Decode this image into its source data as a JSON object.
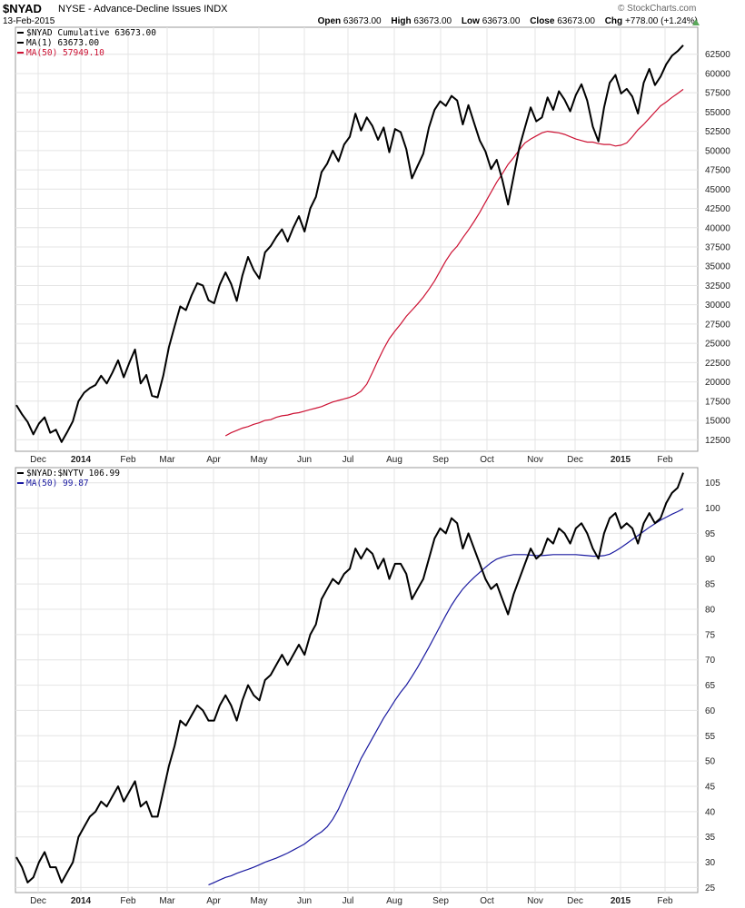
{
  "header": {
    "symbol": "$NYAD",
    "description": "NYSE - Advance-Decline Issues",
    "exchange": "INDX",
    "date": "13-Feb-2015",
    "copyright": "© StockCharts.com",
    "open_label": "Open",
    "open": "63673.00",
    "high_label": "High",
    "high": "63673.00",
    "low_label": "Low",
    "low": "63673.00",
    "close_label": "Close",
    "close": "63673.00",
    "chg_label": "Chg",
    "chg": "+778.00 (+1.24%)",
    "chg_direction": "up"
  },
  "colors": {
    "price": "#000000",
    "ma_top": "#cc1133",
    "ma_bottom": "#1a1aa0",
    "grid": "#e4e4e4",
    "up_arrow": "#5aa85a"
  },
  "chart_data": [
    {
      "type": "line",
      "panel": "top",
      "legend": [
        {
          "label": "$NYAD Cumulative 63673.00",
          "color": "#000000"
        },
        {
          "label": "MA(1) 63673.00",
          "color": "#000000"
        },
        {
          "label": "MA(50) 57949.10",
          "color": "#cc1133"
        }
      ],
      "yticks": [
        12500,
        15000,
        17500,
        20000,
        22500,
        25000,
        27500,
        30000,
        32500,
        35000,
        37500,
        40000,
        42500,
        45000,
        47500,
        50000,
        52500,
        55000,
        57500,
        60000,
        62500
      ],
      "ylim": [
        11000,
        66000
      ],
      "x_labels": [
        "Dec",
        "2014",
        "Feb",
        "Mar",
        "Apr",
        "May",
        "Jun",
        "Jul",
        "Aug",
        "Sep",
        "Oct",
        "Nov",
        "Dec",
        "2015",
        "Feb"
      ],
      "x_label_bold": [
        "2014",
        "2015"
      ],
      "series": [
        {
          "values": [
            17000,
            15800,
            14800,
            13200,
            14600,
            15400,
            13400,
            13800,
            12200,
            13500,
            14900,
            17500,
            18600,
            19200,
            19600,
            20800,
            19800,
            21200,
            22800,
            20600,
            22500,
            24200,
            19800,
            20900,
            18200,
            18000,
            20800,
            24500,
            27200,
            29800,
            29300,
            31200,
            32800,
            32500,
            30600,
            30200,
            32600,
            34200,
            32700,
            30500,
            33800,
            36200,
            34500,
            33400,
            36800,
            37600,
            38800,
            39800,
            38200,
            40000,
            41500,
            39500,
            42500,
            44000,
            47200,
            48300,
            50000,
            48600,
            50800,
            51800,
            54800,
            52600,
            54300,
            53200,
            51400,
            53000,
            49800,
            52800,
            52400,
            50200,
            46400,
            48000,
            49600,
            53000,
            55300,
            56400,
            55800,
            57100,
            56500,
            53400,
            55900,
            53600,
            51300,
            49900,
            47600,
            48800,
            46200,
            43000,
            46700,
            50400,
            53000,
            55600,
            53800,
            54300,
            56900,
            55300,
            57700,
            56600,
            55100,
            57200,
            58600,
            56500,
            53100,
            51200,
            55600,
            58800,
            59800,
            57400,
            58000,
            57000,
            54800,
            58800,
            60600,
            58500,
            59600,
            61200,
            62300,
            62895,
            63673
          ]
        },
        {
          "name": "MA(50)",
          "values": [
            13000,
            13400,
            13700,
            14000,
            14200,
            14500,
            14700,
            15000,
            15100,
            15400,
            15600,
            15700,
            15900,
            16000,
            16200,
            16400,
            16600,
            16800,
            17100,
            17400,
            17600,
            17800,
            18000,
            18300,
            18800,
            19700,
            21200,
            22800,
            24300,
            25600,
            26600,
            27500,
            28500,
            29300,
            30100,
            31000,
            32000,
            33100,
            34400,
            35700,
            36800,
            37600,
            38700,
            39700,
            40800,
            42000,
            43300,
            44600,
            45900,
            47000,
            48200,
            49100,
            50100,
            51000,
            51500,
            51900,
            52300,
            52500,
            52400,
            52300,
            52100,
            51800,
            51500,
            51300,
            51100,
            51100,
            50900,
            50800,
            50800,
            50600,
            50700,
            51000,
            51800,
            52700,
            53400,
            54200,
            55000,
            55800,
            56300,
            56900,
            57400,
            57949
          ]
        }
      ]
    },
    {
      "type": "line",
      "panel": "bottom",
      "legend": [
        {
          "label": "$NYAD:$NYTV 106.99",
          "color": "#000000"
        },
        {
          "label": "MA(50) 99.87",
          "color": "#1a1aa0"
        }
      ],
      "yticks": [
        25,
        30,
        35,
        40,
        45,
        50,
        55,
        60,
        65,
        70,
        75,
        80,
        85,
        90,
        95,
        100,
        105
      ],
      "ylim": [
        24,
        108
      ],
      "x_labels": [
        "Dec",
        "2014",
        "Feb",
        "Mar",
        "Apr",
        "May",
        "Jun",
        "Jul",
        "Aug",
        "Sep",
        "Oct",
        "Nov",
        "Dec",
        "2015",
        "Feb"
      ],
      "x_label_bold": [
        "2014",
        "2015"
      ],
      "series": [
        {
          "values": [
            31,
            29,
            26,
            27,
            30,
            32,
            29,
            29,
            26,
            28,
            30,
            35,
            37,
            39,
            40,
            42,
            41,
            43,
            45,
            42,
            44,
            46,
            41,
            42,
            39,
            39,
            44,
            49,
            53,
            58,
            57,
            59,
            61,
            60,
            58,
            58,
            61,
            63,
            61,
            58,
            62,
            65,
            63,
            62,
            66,
            67,
            69,
            71,
            69,
            71,
            73,
            71,
            75,
            77,
            82,
            84,
            86,
            85,
            87,
            88,
            92,
            90,
            92,
            91,
            88,
            90,
            86,
            89,
            89,
            87,
            82,
            84,
            86,
            90,
            94,
            96,
            95,
            98,
            97,
            92,
            95,
            92,
            89,
            86,
            84,
            85,
            82,
            79,
            83,
            86,
            89,
            92,
            90,
            91,
            94,
            93,
            96,
            95,
            93,
            96,
            97,
            95,
            92,
            90,
            95,
            98,
            99,
            96,
            97,
            96,
            93,
            97,
            99,
            97,
            98,
            101,
            103,
            104,
            106.99
          ]
        },
        {
          "name": "MA(50)",
          "values": [
            25.5,
            26,
            26.5,
            27,
            27.3,
            27.8,
            28.2,
            28.6,
            29,
            29.5,
            30,
            30.4,
            30.8,
            31.3,
            31.8,
            32.4,
            33,
            33.6,
            34.5,
            35.3,
            36,
            37,
            38.5,
            40.5,
            43,
            45.5,
            48,
            50.5,
            52.5,
            54.5,
            56.5,
            58.5,
            60.2,
            62,
            63.6,
            65,
            66.7,
            68.5,
            70.5,
            72.5,
            74.6,
            76.7,
            78.8,
            80.8,
            82.5,
            84,
            85.2,
            86.3,
            87.3,
            88.3,
            89.2,
            89.9,
            90.3,
            90.6,
            90.8,
            90.8,
            90.8,
            90.7,
            90.6,
            90.6,
            90.7,
            90.8,
            90.8,
            90.8,
            90.8,
            90.8,
            90.7,
            90.6,
            90.5,
            90.5,
            90.6,
            90.9,
            91.5,
            92.2,
            93,
            93.8,
            94.6,
            95.4,
            96.2,
            96.9,
            97.6,
            98.2,
            98.8,
            99.3,
            99.87
          ]
        }
      ]
    }
  ]
}
